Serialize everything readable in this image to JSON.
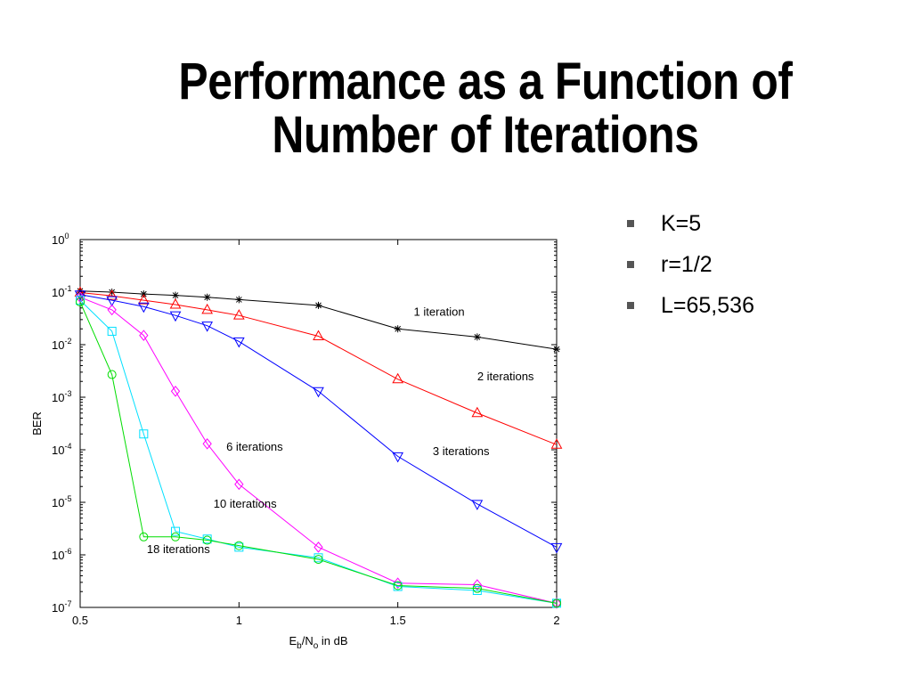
{
  "slide": {
    "title_line1": "Performance as a Function of",
    "title_line2": "Number of Iterations",
    "bullets": [
      "K=5",
      "r=1/2",
      "L=65,536"
    ]
  },
  "chart_data": {
    "type": "line",
    "xlabel": "Eb/No in dB",
    "ylabel": "BER",
    "xlim": [
      0.5,
      2
    ],
    "ylim": [
      1e-07,
      1
    ],
    "yscale": "log",
    "grid": false,
    "x_ticks": [
      0.5,
      1,
      1.5,
      2
    ],
    "x_tick_labels": [
      "0.5",
      "1",
      "1.5",
      "2"
    ],
    "y_ticks": [
      {
        "base": "10",
        "exp": "0"
      },
      {
        "base": "10",
        "exp": "-1"
      },
      {
        "base": "10",
        "exp": "-2"
      },
      {
        "base": "10",
        "exp": "-3"
      },
      {
        "base": "10",
        "exp": "-4"
      },
      {
        "base": "10",
        "exp": "-5"
      },
      {
        "base": "10",
        "exp": "-6"
      },
      {
        "base": "10",
        "exp": "-7"
      }
    ],
    "series": [
      {
        "name": "1 iteration",
        "color": "#000000",
        "marker": "star",
        "x": [
          0.5,
          0.6,
          0.7,
          0.8,
          0.9,
          1.0,
          1.25,
          1.5,
          1.75,
          2.0
        ],
        "y": [
          0.105,
          0.1,
          0.092,
          0.087,
          0.08,
          0.072,
          0.056,
          0.02,
          0.014,
          0.0082
        ],
        "label_at": [
          1.55,
          -1.45
        ]
      },
      {
        "name": "2 iterations",
        "color": "#ff0000",
        "marker": "triangle-up",
        "x": [
          0.5,
          0.6,
          0.7,
          0.8,
          0.9,
          1.0,
          1.25,
          1.5,
          1.75,
          2.0
        ],
        "y": [
          0.098,
          0.085,
          0.07,
          0.058,
          0.046,
          0.036,
          0.0145,
          0.0022,
          0.0005,
          0.000125
        ],
        "label_at": [
          1.75,
          -2.68
        ]
      },
      {
        "name": "3 iterations",
        "color": "#0000ff",
        "marker": "triangle-down",
        "x": [
          0.5,
          0.6,
          0.7,
          0.8,
          0.9,
          1.0,
          1.25,
          1.5,
          1.75,
          2.0
        ],
        "y": [
          0.09,
          0.07,
          0.053,
          0.036,
          0.023,
          0.0115,
          0.0013,
          7.5e-05,
          9.3e-06,
          1.4e-06
        ],
        "label_at": [
          1.61,
          -4.1
        ]
      },
      {
        "name": "6 iterations",
        "color": "#ff00ff",
        "marker": "diamond",
        "x": [
          0.5,
          0.6,
          0.7,
          0.8,
          0.9,
          1.0,
          1.25,
          1.5,
          1.75,
          2.0
        ],
        "y": [
          0.08,
          0.046,
          0.015,
          0.0013,
          0.00013,
          2.2e-05,
          1.4e-06,
          2.9e-07,
          2.7e-07,
          1.2e-07
        ],
        "label_at": [
          0.96,
          -4.02
        ]
      },
      {
        "name": "10 iterations",
        "color": "#00e0ff",
        "marker": "square",
        "x": [
          0.5,
          0.6,
          0.7,
          0.8,
          0.9,
          1.0,
          1.25,
          1.5,
          1.75,
          2.0
        ],
        "y": [
          0.07,
          0.018,
          0.0002,
          2.8e-06,
          2e-06,
          1.4e-06,
          8.8e-07,
          2.5e-07,
          2.1e-07,
          1.2e-07
        ],
        "label_at": [
          0.92,
          -5.1
        ]
      },
      {
        "name": "18 iterations",
        "color": "#00dd00",
        "marker": "circle",
        "x": [
          0.5,
          0.6,
          0.7,
          0.8,
          0.9,
          1.0,
          1.25,
          1.5,
          1.75,
          2.0
        ],
        "y": [
          0.065,
          0.0027,
          2.2e-06,
          2.2e-06,
          1.9e-06,
          1.5e-06,
          8.2e-07,
          2.6e-07,
          2.3e-07,
          1.2e-07
        ],
        "label_at": [
          0.71,
          -5.97
        ]
      }
    ]
  }
}
